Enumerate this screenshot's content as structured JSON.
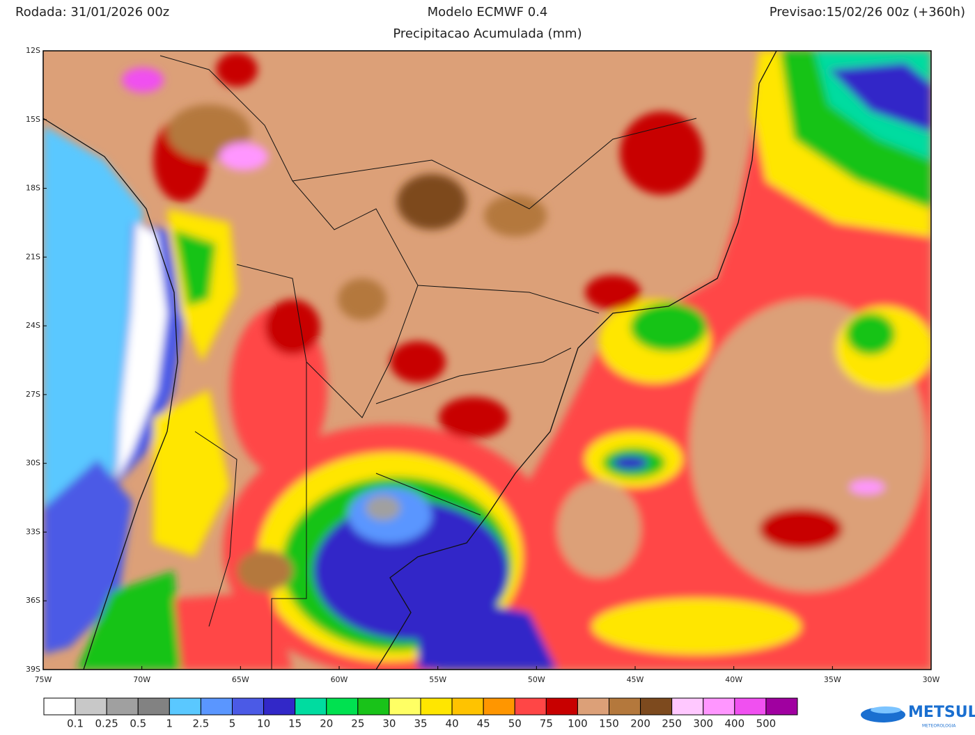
{
  "header": {
    "run": "Rodada: 31/01/2026 00z",
    "model": "Modelo ECMWF 0.4",
    "forecast": "Previsao:15/02/26 00z (+360h)",
    "subtitle": "Precipitacao Acumulada (mm)"
  },
  "map": {
    "lat_labels": [
      "12S",
      "15S",
      "18S",
      "21S",
      "24S",
      "27S",
      "30S",
      "33S",
      "36S",
      "39S"
    ],
    "lon_labels": [
      "75W",
      "70W",
      "65W",
      "60W",
      "55W",
      "50W",
      "45W",
      "40W",
      "35W",
      "30W"
    ]
  },
  "legend": {
    "colors": [
      "#ffffff",
      "#c8c8c8",
      "#a0a0a0",
      "#828282",
      "#5ac8ff",
      "#5a96ff",
      "#4b5ae6",
      "#3228c8",
      "#00dca0",
      "#00e150",
      "#19c319",
      "#ffff64",
      "#ffe600",
      "#ffc300",
      "#ff9600",
      "#ff4646",
      "#c80000",
      "#dca078",
      "#b4783c",
      "#7d4a1e",
      "#ffc8ff",
      "#ff96ff",
      "#f050f0",
      "#a000a0"
    ],
    "labels": [
      "0.1",
      "0.25",
      "0.5",
      "1",
      "2.5",
      "5",
      "10",
      "15",
      "20",
      "25",
      "30",
      "35",
      "40",
      "45",
      "50",
      "75",
      "100",
      "150",
      "200",
      "250",
      "300",
      "400",
      "500"
    ]
  },
  "logo": {
    "name": "METSUL",
    "tagline": "METEOROLOGIA"
  }
}
